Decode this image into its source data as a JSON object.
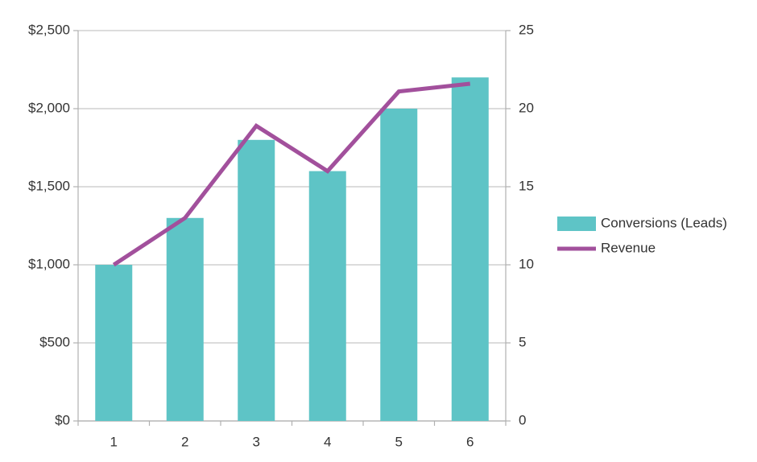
{
  "chart_data": {
    "type": "bar-line",
    "categories": [
      "1",
      "2",
      "3",
      "4",
      "5",
      "6"
    ],
    "series": [
      {
        "name": "Conversions (Leads)",
        "type": "bar",
        "color": "#5ec4c6",
        "values": [
          1000,
          1300,
          1800,
          1600,
          2000,
          2200
        ]
      },
      {
        "name": "Revenue",
        "type": "line",
        "axis": "y2",
        "color": "#a2509c",
        "values": [
          10,
          13,
          18.9,
          16,
          21.1,
          21.6
        ]
      }
    ],
    "ylim": [
      0,
      2500
    ],
    "yticks": [
      {
        "value": 0,
        "label": "$0"
      },
      {
        "value": 500,
        "label": "$500"
      },
      {
        "value": 1000,
        "label": "$1,000"
      },
      {
        "value": 1500,
        "label": "$1,500"
      },
      {
        "value": 2000,
        "label": "$2,000"
      },
      {
        "value": 2500,
        "label": "$2,500"
      }
    ],
    "y2lim": [
      0,
      25
    ],
    "y2ticks": [
      0,
      5,
      10,
      15,
      20,
      25
    ],
    "grid": true,
    "legend": "right"
  }
}
